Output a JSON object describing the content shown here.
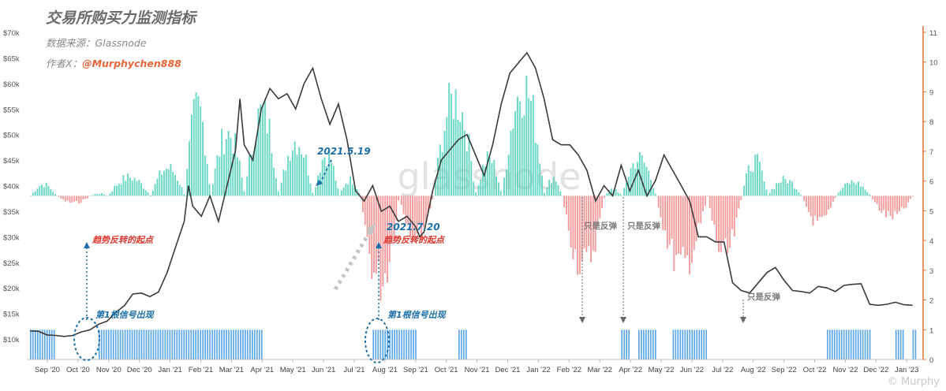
{
  "header": {
    "title": "交易所购买力监测指标",
    "source": "数据来源：Glassnode",
    "author_prefix": "作者X：",
    "author_handle": "@Murphychen888"
  },
  "watermark": "glassnode",
  "corner_mark": "© Murphy",
  "colors": {
    "price_line": "#3a3a3a",
    "positive_bar": "#4fd0bb",
    "negative_bar": "#f08a8a",
    "signal_bar": "#5fa8e8",
    "annotation_blue": "#1c6fa8",
    "annotation_red": "#e0352b",
    "annotation_gray": "#7a7a7a",
    "right_axis": "#e0703a"
  },
  "chart_data": {
    "type": "line",
    "x_ticks": [
      "Sep '20",
      "Oct '20",
      "Nov '20",
      "Dec '20",
      "Jan '21",
      "Feb '21",
      "Mar '21",
      "Apr '21",
      "May '21",
      "Jun '21",
      "Jul '21",
      "Aug '21",
      "Sep '21",
      "Oct '21",
      "Nov '21",
      "Dec '21",
      "Jan '22",
      "Feb '22",
      "Mar '22",
      "Apr '22",
      "May '22",
      "Jun '22",
      "Jul '22",
      "Aug '22",
      "Sep '22",
      "Oct '22",
      "Nov '22",
      "Dec '22",
      "Jan '23"
    ],
    "left_axis": {
      "ticks": [
        "$10k",
        "$15k",
        "$20k",
        "$25k",
        "$30k",
        "$35k",
        "$40k",
        "$45k",
        "$50k",
        "$55k",
        "$60k",
        "$65k",
        "$70k"
      ],
      "ylim": [
        6000,
        70000
      ]
    },
    "right_axis": {
      "ticks": [
        "0",
        "1",
        "2",
        "3",
        "4",
        "5",
        "6",
        "7",
        "8",
        "9",
        "10",
        "11"
      ],
      "ylim": [
        0,
        11
      ]
    },
    "price_series": {
      "values": [
        [
          0,
          11600
        ],
        [
          2,
          11500
        ],
        [
          4,
          10800
        ],
        [
          6,
          10700
        ],
        [
          8,
          10500
        ],
        [
          10,
          10700
        ],
        [
          12,
          11400
        ],
        [
          14,
          11800
        ],
        [
          16,
          12900
        ],
        [
          18,
          13500
        ],
        [
          20,
          15200
        ],
        [
          22,
          16500
        ],
        [
          24,
          18800
        ],
        [
          26,
          19000
        ],
        [
          28,
          18300
        ],
        [
          30,
          19200
        ],
        [
          32,
          23000
        ],
        [
          34,
          28000
        ],
        [
          36,
          33000
        ],
        [
          37,
          40000
        ],
        [
          38,
          36000
        ],
        [
          40,
          34000
        ],
        [
          42,
          38000
        ],
        [
          44,
          33000
        ],
        [
          46,
          40000
        ],
        [
          48,
          47000
        ],
        [
          49,
          57000
        ],
        [
          50,
          48000
        ],
        [
          52,
          45000
        ],
        [
          54,
          55000
        ],
        [
          56,
          59000
        ],
        [
          58,
          57000
        ],
        [
          60,
          58000
        ],
        [
          62,
          55000
        ],
        [
          64,
          60000
        ],
        [
          66,
          63000
        ],
        [
          68,
          57000
        ],
        [
          70,
          52000
        ],
        [
          72,
          56000
        ],
        [
          74,
          49000
        ],
        [
          76,
          39000
        ],
        [
          78,
          37000
        ],
        [
          80,
          40000
        ],
        [
          82,
          35000
        ],
        [
          84,
          36000
        ],
        [
          86,
          33000
        ],
        [
          88,
          34000
        ],
        [
          90,
          32000
        ],
        [
          91,
          30000
        ],
        [
          92,
          31000
        ],
        [
          94,
          39000
        ],
        [
          96,
          45000
        ],
        [
          98,
          47000
        ],
        [
          100,
          49000
        ],
        [
          102,
          50000
        ],
        [
          104,
          46000
        ],
        [
          106,
          42000
        ],
        [
          108,
          48000
        ],
        [
          110,
          56000
        ],
        [
          112,
          62000
        ],
        [
          114,
          64000
        ],
        [
          116,
          66000
        ],
        [
          118,
          63000
        ],
        [
          120,
          57000
        ],
        [
          122,
          49000
        ],
        [
          124,
          48000
        ],
        [
          126,
          48000
        ],
        [
          128,
          46000
        ],
        [
          130,
          43000
        ],
        [
          132,
          37000
        ],
        [
          134,
          40000
        ],
        [
          136,
          38000
        ],
        [
          138,
          44000
        ],
        [
          140,
          39000
        ],
        [
          142,
          43000
        ],
        [
          144,
          38000
        ],
        [
          146,
          41000
        ],
        [
          148,
          46000
        ],
        [
          150,
          43000
        ],
        [
          152,
          40000
        ],
        [
          154,
          37000
        ],
        [
          156,
          30000
        ],
        [
          158,
          30000
        ],
        [
          160,
          29000
        ],
        [
          162,
          29000
        ],
        [
          164,
          21000
        ],
        [
          166,
          19500
        ],
        [
          168,
          19000
        ],
        [
          170,
          21000
        ],
        [
          172,
          23000
        ],
        [
          174,
          24000
        ],
        [
          176,
          21500
        ],
        [
          178,
          19500
        ],
        [
          180,
          19300
        ],
        [
          182,
          19000
        ],
        [
          184,
          20300
        ],
        [
          186,
          20000
        ],
        [
          188,
          19300
        ],
        [
          190,
          20500
        ],
        [
          192,
          20700
        ],
        [
          194,
          20800
        ],
        [
          196,
          16800
        ],
        [
          198,
          16600
        ],
        [
          200,
          16800
        ],
        [
          202,
          17200
        ],
        [
          204,
          16700
        ],
        [
          206,
          16600
        ]
      ]
    },
    "indicator_series": {
      "baseline": 5.5,
      "segments": [
        {
          "start": 0,
          "end": 6,
          "peak": 6.0
        },
        {
          "start": 6,
          "end": 14,
          "peak": 5.2
        },
        {
          "start": 14,
          "end": 18,
          "peak": 5.6
        },
        {
          "start": 18,
          "end": 28,
          "peak": 6.3
        },
        {
          "start": 28,
          "end": 36,
          "peak": 6.7
        },
        {
          "start": 36,
          "end": 42,
          "peak": 9.3
        },
        {
          "start": 42,
          "end": 50,
          "peak": 8.2
        },
        {
          "start": 50,
          "end": 58,
          "peak": 9.1
        },
        {
          "start": 58,
          "end": 66,
          "peak": 7.9
        },
        {
          "start": 66,
          "end": 72,
          "peak": 7.3
        },
        {
          "start": 72,
          "end": 77,
          "peak": 6.2
        },
        {
          "start": 77,
          "end": 86,
          "peak": 1.8
        },
        {
          "start": 86,
          "end": 94,
          "peak": 3.8
        },
        {
          "start": 94,
          "end": 104,
          "peak": 9.7
        },
        {
          "start": 104,
          "end": 110,
          "peak": 7.1
        },
        {
          "start": 110,
          "end": 120,
          "peak": 10.2
        },
        {
          "start": 120,
          "end": 124,
          "peak": 6.3
        },
        {
          "start": 124,
          "end": 134,
          "peak": 2.5
        },
        {
          "start": 134,
          "end": 138,
          "peak": 5.8
        },
        {
          "start": 138,
          "end": 146,
          "peak": 7.1
        },
        {
          "start": 146,
          "end": 158,
          "peak": 2.5
        },
        {
          "start": 158,
          "end": 166,
          "peak": 2.9
        },
        {
          "start": 166,
          "end": 172,
          "peak": 7.0
        },
        {
          "start": 172,
          "end": 180,
          "peak": 6.2
        },
        {
          "start": 180,
          "end": 188,
          "peak": 4.3
        },
        {
          "start": 188,
          "end": 196,
          "peak": 6.1
        },
        {
          "start": 196,
          "end": 206,
          "peak": 4.6
        }
      ]
    },
    "signal_blocks": [
      [
        0,
        6
      ],
      [
        16,
        54
      ],
      [
        80,
        90
      ],
      [
        100,
        102
      ],
      [
        138,
        140
      ],
      [
        142,
        146
      ],
      [
        150,
        158
      ],
      [
        186,
        196
      ],
      [
        202,
        204
      ],
      [
        206,
        207
      ]
    ],
    "annotations": [
      {
        "text": "2021.5.19",
        "color": "blue"
      },
      {
        "text": "2021.7.20",
        "color": "blue"
      },
      {
        "text": "趋势反转的起点",
        "color": "red"
      },
      {
        "text": "趋势反转的起点",
        "color": "red"
      },
      {
        "text": "第1根信号出现",
        "color": "blue"
      },
      {
        "text": "第1根信号出现",
        "color": "blue"
      },
      {
        "text": "只是反弹",
        "color": "gray"
      },
      {
        "text": "只是反弹",
        "color": "gray"
      },
      {
        "text": "只是反弹",
        "color": "gray"
      }
    ]
  }
}
